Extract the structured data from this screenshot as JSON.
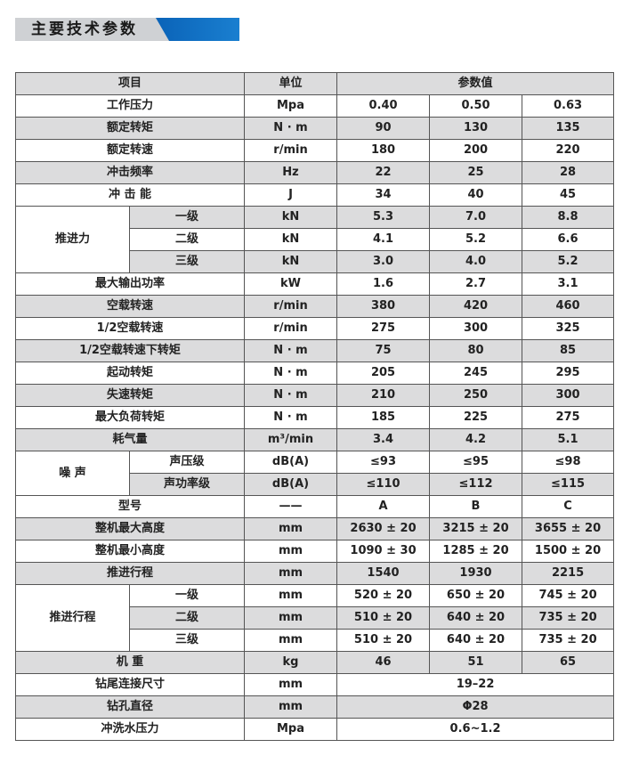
{
  "section_title": "主要技术参数",
  "header": {
    "item": "项目",
    "unit": "单位",
    "value": "参数值"
  },
  "rows": [
    {
      "label": "工作压力",
      "unit": "Mpa",
      "values": [
        "0.40",
        "0.50",
        "0.63"
      ]
    },
    {
      "label": "额定转矩",
      "unit": "N · m",
      "values": [
        "90",
        "130",
        "135"
      ]
    },
    {
      "label": "额定转速",
      "unit": "r/min",
      "values": [
        "180",
        "200",
        "220"
      ]
    },
    {
      "label": "冲击频率",
      "unit": "Hz",
      "values": [
        "22",
        "25",
        "28"
      ]
    },
    {
      "label": "冲 击 能",
      "unit": "J",
      "values": [
        "34",
        "40",
        "45"
      ]
    },
    {
      "group": "推进力",
      "subrows": [
        {
          "label": "一级",
          "unit": "kN",
          "values": [
            "5.3",
            "7.0",
            "8.8"
          ]
        },
        {
          "label": "二级",
          "unit": "kN",
          "values": [
            "4.1",
            "5.2",
            "6.6"
          ]
        },
        {
          "label": "三级",
          "unit": "kN",
          "values": [
            "3.0",
            "4.0",
            "5.2"
          ]
        }
      ]
    },
    {
      "label": "最大输出功率",
      "unit": "kW",
      "values": [
        "1.6",
        "2.7",
        "3.1"
      ]
    },
    {
      "label": "空载转速",
      "unit": "r/min",
      "values": [
        "380",
        "420",
        "460"
      ]
    },
    {
      "label": "1/2空载转速",
      "unit": "r/min",
      "values": [
        "275",
        "300",
        "325"
      ]
    },
    {
      "label": "1/2空载转速下转矩",
      "unit": "N · m",
      "values": [
        "75",
        "80",
        "85"
      ]
    },
    {
      "label": "起动转矩",
      "unit": "N · m",
      "values": [
        "205",
        "245",
        "295"
      ]
    },
    {
      "label": "失速转矩",
      "unit": "N · m",
      "values": [
        "210",
        "250",
        "300"
      ]
    },
    {
      "label": "最大负荷转矩",
      "unit": "N · m",
      "values": [
        "185",
        "225",
        "275"
      ]
    },
    {
      "label": "耗气量",
      "unit": "m³/min",
      "values": [
        "3.4",
        "4.2",
        "5.1"
      ]
    },
    {
      "group": "噪 声",
      "subrows": [
        {
          "label": "声压级",
          "unit": "dB(A)",
          "values": [
            "≤93",
            "≤95",
            "≤98"
          ]
        },
        {
          "label": "声功率级",
          "unit": "dB(A)",
          "values": [
            "≤110",
            "≤112",
            "≤115"
          ]
        }
      ]
    },
    {
      "label": "型号",
      "unit": "——",
      "values": [
        "A",
        "B",
        "C"
      ]
    },
    {
      "label": "整机最大高度",
      "unit": "mm",
      "values": [
        "2630 ± 20",
        "3215 ± 20",
        "3655 ± 20"
      ]
    },
    {
      "label": "整机最小高度",
      "unit": "mm",
      "values": [
        "1090 ± 30",
        "1285 ± 20",
        "1500 ± 20"
      ]
    },
    {
      "label": "推进行程",
      "unit": "mm",
      "values": [
        "1540",
        "1930",
        "2215"
      ]
    },
    {
      "group": "推进行程",
      "subrows": [
        {
          "label": "一级",
          "unit": "mm",
          "values": [
            "520 ± 20",
            "650 ± 20",
            "745 ± 20"
          ]
        },
        {
          "label": "二级",
          "unit": "mm",
          "values": [
            "510 ± 20",
            "640 ± 20",
            "735 ± 20"
          ]
        },
        {
          "label": "三级",
          "unit": "mm",
          "values": [
            "510 ± 20",
            "640 ± 20",
            "735 ± 20"
          ]
        }
      ]
    },
    {
      "label": "机 重",
      "unit": "kg",
      "values": [
        "46",
        "51",
        "65"
      ]
    },
    {
      "label": "钻尾连接尺寸",
      "unit": "mm",
      "value": "19–22"
    },
    {
      "label": "钻孔直径",
      "unit": "mm",
      "value": "Φ28"
    },
    {
      "label": "冲洗水压力",
      "unit": "Mpa",
      "value": "0.6~1.2"
    }
  ],
  "colors": {
    "accent_blue": "#0a63b8",
    "banner_gray": "#cfd1d4",
    "row_shade": "#dcdcdd",
    "border": "#555555"
  }
}
